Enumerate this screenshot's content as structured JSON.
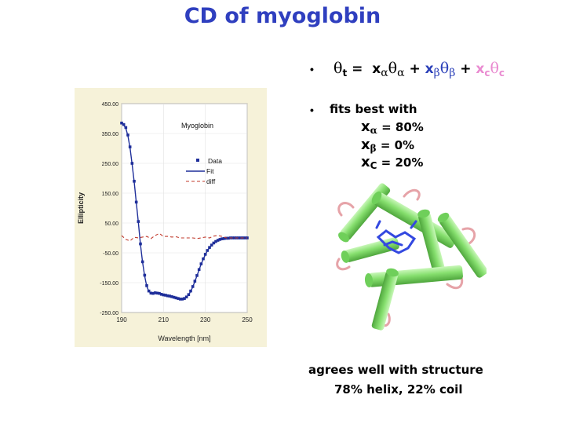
{
  "slide": {
    "title": "CD of myoglobin",
    "equation": {
      "theta": "θ",
      "t": "t",
      "eq": "=",
      "x": "x",
      "alpha": "α",
      "beta": "β",
      "c": "c",
      "plus": "+"
    },
    "fits_label": "fits best with",
    "fractions": [
      {
        "sub": "α",
        "value": "= 80%"
      },
      {
        "sub": "β",
        "value": "= 0%"
      },
      {
        "sub": "C",
        "value": "= 20%"
      }
    ],
    "conclusion_line1": "agrees well with structure",
    "conclusion_line2": "78% helix, 22% coil",
    "bullet": "•",
    "colors": {
      "title": "#2f3fbf",
      "beta": "#2a3fb8",
      "coil": "#e98ad0",
      "helix": "#8fe07a"
    }
  },
  "chart_data": {
    "type": "line",
    "title": "Myoglobin",
    "xlabel": "Wavelength [nm]",
    "ylabel": "Ellipticity",
    "xlim": [
      190,
      250
    ],
    "ylim": [
      -250,
      450
    ],
    "xticks": [
      190,
      210,
      230,
      250
    ],
    "xtick_labels": [
      "190",
      "210",
      "230",
      "250"
    ],
    "yticks": [
      -250,
      -150,
      -50,
      50,
      150,
      250,
      350,
      450
    ],
    "ytick_labels": [
      "-250.00",
      "-150.00",
      "-50.00",
      "50.00",
      "150.00",
      "250.00",
      "350.00",
      "450.00"
    ],
    "legend": [
      "Data",
      "Fit",
      "diff"
    ],
    "legend_position": "right",
    "grid": true,
    "series": [
      {
        "name": "Data",
        "style": "markers",
        "x": [
          190,
          191,
          192,
          193,
          194,
          195,
          196,
          197,
          198,
          199,
          200,
          201,
          202,
          203,
          204,
          205,
          206,
          207,
          208,
          209,
          210,
          211,
          212,
          213,
          214,
          215,
          216,
          217,
          218,
          219,
          220,
          221,
          222,
          223,
          224,
          225,
          226,
          227,
          228,
          229,
          230,
          231,
          232,
          233,
          234,
          235,
          236,
          237,
          238,
          239,
          240,
          241,
          242,
          243,
          244,
          245,
          246,
          247,
          248,
          249,
          250
        ],
        "y": [
          385,
          380,
          370,
          345,
          305,
          250,
          190,
          120,
          55,
          -20,
          -80,
          -125,
          -160,
          -178,
          -185,
          -186,
          -184,
          -185,
          -186,
          -189,
          -191,
          -192,
          -194,
          -195,
          -197,
          -199,
          -201,
          -203,
          -205,
          -205,
          -203,
          -198,
          -190,
          -178,
          -163,
          -145,
          -126,
          -106,
          -87,
          -70,
          -55,
          -42,
          -32,
          -24,
          -17,
          -12,
          -8,
          -5,
          -3,
          -2,
          -1,
          -1,
          0,
          0,
          0,
          0,
          0,
          0,
          0,
          0,
          0
        ]
      },
      {
        "name": "Fit",
        "style": "line",
        "x": [
          190,
          191,
          192,
          193,
          194,
          195,
          196,
          197,
          198,
          199,
          200,
          201,
          202,
          203,
          204,
          205,
          206,
          207,
          208,
          209,
          210,
          211,
          212,
          213,
          214,
          215,
          216,
          217,
          218,
          219,
          220,
          221,
          222,
          223,
          224,
          225,
          226,
          227,
          228,
          229,
          230,
          231,
          232,
          233,
          234,
          235,
          236,
          237,
          238,
          239,
          240,
          241,
          242,
          243,
          244,
          245,
          246,
          247,
          248,
          249,
          250
        ],
        "y": [
          388,
          378,
          368,
          342,
          302,
          248,
          188,
          118,
          52,
          -22,
          -82,
          -127,
          -162,
          -179,
          -186,
          -187,
          -185,
          -186,
          -187,
          -190,
          -192,
          -193,
          -195,
          -196,
          -198,
          -200,
          -202,
          -204,
          -206,
          -206,
          -204,
          -199,
          -191,
          -179,
          -164,
          -146,
          -127,
          -107,
          -88,
          -71,
          -56,
          -43,
          -33,
          -25,
          -18,
          -13,
          -9,
          -6,
          -4,
          -2,
          -1,
          -1,
          0,
          0,
          0,
          0,
          0,
          0,
          0,
          0,
          0
        ]
      },
      {
        "name": "diff",
        "style": "dashed",
        "x": [
          190,
          192,
          194,
          196,
          198,
          200,
          202,
          204,
          206,
          208,
          210,
          212,
          214,
          216,
          218,
          220,
          222,
          224,
          226,
          228,
          230,
          232,
          234,
          236,
          238,
          240,
          242,
          244,
          246,
          248,
          250
        ],
        "y": [
          8,
          -5,
          -10,
          2,
          0,
          3,
          5,
          -2,
          8,
          15,
          5,
          5,
          3,
          4,
          0,
          0,
          0,
          0,
          -2,
          0,
          3,
          0,
          6,
          8,
          5,
          0,
          0,
          0,
          0,
          0,
          0
        ]
      }
    ]
  }
}
